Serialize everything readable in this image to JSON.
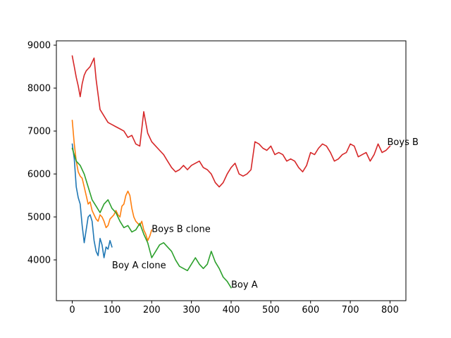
{
  "chart_data": {
    "type": "line",
    "xlim": [
      -40,
      840
    ],
    "ylim": [
      3050,
      9100
    ],
    "x_ticks": [
      0,
      100,
      200,
      300,
      400,
      500,
      600,
      700,
      800
    ],
    "y_ticks": [
      4000,
      5000,
      6000,
      7000,
      8000,
      9000
    ],
    "x_tick_labels": [
      "0",
      "100",
      "200",
      "300",
      "400",
      "500",
      "600",
      "700",
      "800"
    ],
    "y_tick_labels": [
      "4000",
      "5000",
      "6000",
      "7000",
      "8000",
      "9000"
    ],
    "grid": false,
    "series": [
      {
        "name": "Boy A clone",
        "color": "#1f77b4",
        "x": [
          0,
          5,
          10,
          15,
          20,
          25,
          30,
          35,
          40,
          45,
          50,
          55,
          60,
          65,
          70,
          75,
          80,
          85,
          90,
          95,
          100
        ],
        "y": [
          6700,
          6350,
          5700,
          5450,
          5300,
          4800,
          4400,
          4700,
          5000,
          5050,
          4900,
          4450,
          4200,
          4100,
          4500,
          4350,
          4050,
          4300,
          4250,
          4450,
          4300
        ]
      },
      {
        "name": "Boys B clone",
        "color": "#ff7f0e",
        "x": [
          0,
          5,
          10,
          15,
          20,
          25,
          30,
          35,
          40,
          45,
          50,
          55,
          60,
          65,
          70,
          75,
          80,
          85,
          90,
          95,
          100,
          105,
          110,
          115,
          120,
          125,
          130,
          135,
          140,
          145,
          150,
          155,
          160,
          165,
          170,
          175,
          180,
          185,
          190,
          195,
          200
        ],
        "y": [
          7250,
          6700,
          6300,
          6050,
          5950,
          5900,
          5700,
          5500,
          5300,
          5350,
          5150,
          5050,
          4950,
          4900,
          5050,
          5000,
          4900,
          4750,
          4800,
          4950,
          5000,
          5050,
          5150,
          5050,
          5000,
          5250,
          5300,
          5500,
          5600,
          5500,
          5200,
          5000,
          4900,
          4850,
          4800,
          4900,
          4700,
          4600,
          4450,
          4550,
          4700
        ]
      },
      {
        "name": "Boy A",
        "color": "#2ca02c",
        "x": [
          0,
          10,
          20,
          30,
          40,
          50,
          60,
          70,
          80,
          90,
          100,
          110,
          120,
          130,
          140,
          150,
          160,
          170,
          180,
          190,
          200,
          210,
          220,
          230,
          240,
          250,
          260,
          270,
          280,
          290,
          300,
          310,
          320,
          330,
          340,
          350,
          360,
          370,
          380,
          390,
          400
        ],
        "y": [
          6600,
          6300,
          6200,
          6000,
          5700,
          5400,
          5250,
          5100,
          5300,
          5400,
          5200,
          5100,
          4900,
          4750,
          4800,
          4650,
          4700,
          4850,
          4600,
          4400,
          4050,
          4200,
          4350,
          4400,
          4300,
          4200,
          4000,
          3850,
          3800,
          3750,
          3900,
          4050,
          3900,
          3800,
          3900,
          4200,
          3950,
          3800,
          3600,
          3500,
          3350
        ]
      },
      {
        "name": "Boys B",
        "color": "#d62728",
        "x": [
          0,
          5,
          10,
          15,
          20,
          25,
          30,
          35,
          40,
          45,
          50,
          55,
          60,
          70,
          80,
          90,
          100,
          110,
          120,
          130,
          140,
          150,
          160,
          170,
          180,
          190,
          200,
          210,
          220,
          230,
          240,
          250,
          260,
          270,
          280,
          290,
          300,
          310,
          320,
          330,
          340,
          350,
          360,
          370,
          380,
          390,
          400,
          410,
          420,
          430,
          440,
          450,
          460,
          470,
          480,
          490,
          500,
          510,
          520,
          530,
          540,
          550,
          560,
          570,
          580,
          590,
          600,
          610,
          620,
          630,
          640,
          650,
          660,
          670,
          680,
          690,
          700,
          710,
          720,
          730,
          740,
          750,
          760,
          770,
          780,
          790,
          800
        ],
        "y": [
          8750,
          8500,
          8250,
          8050,
          7800,
          8100,
          8300,
          8400,
          8450,
          8500,
          8600,
          8700,
          8200,
          7500,
          7350,
          7200,
          7150,
          7100,
          7050,
          7000,
          6850,
          6900,
          6700,
          6650,
          7450,
          6950,
          6750,
          6650,
          6550,
          6450,
          6300,
          6150,
          6050,
          6100,
          6200,
          6100,
          6200,
          6250,
          6300,
          6150,
          6100,
          6000,
          5800,
          5700,
          5800,
          6000,
          6150,
          6250,
          6000,
          5950,
          6000,
          6100,
          6750,
          6700,
          6600,
          6550,
          6650,
          6450,
          6500,
          6450,
          6300,
          6350,
          6300,
          6150,
          6050,
          6200,
          6500,
          6450,
          6600,
          6700,
          6650,
          6500,
          6300,
          6350,
          6450,
          6500,
          6700,
          6650,
          6400,
          6450,
          6500,
          6300,
          6450,
          6700,
          6500,
          6550,
          6650
        ]
      }
    ],
    "annotations": [
      {
        "text": "Boy A clone",
        "x": 100,
        "y": 3880
      },
      {
        "text": "Boys B clone",
        "x": 200,
        "y": 4720
      },
      {
        "text": "Boy A",
        "x": 400,
        "y": 3430
      },
      {
        "text": "Boys B",
        "x": 793,
        "y": 6750
      }
    ]
  }
}
